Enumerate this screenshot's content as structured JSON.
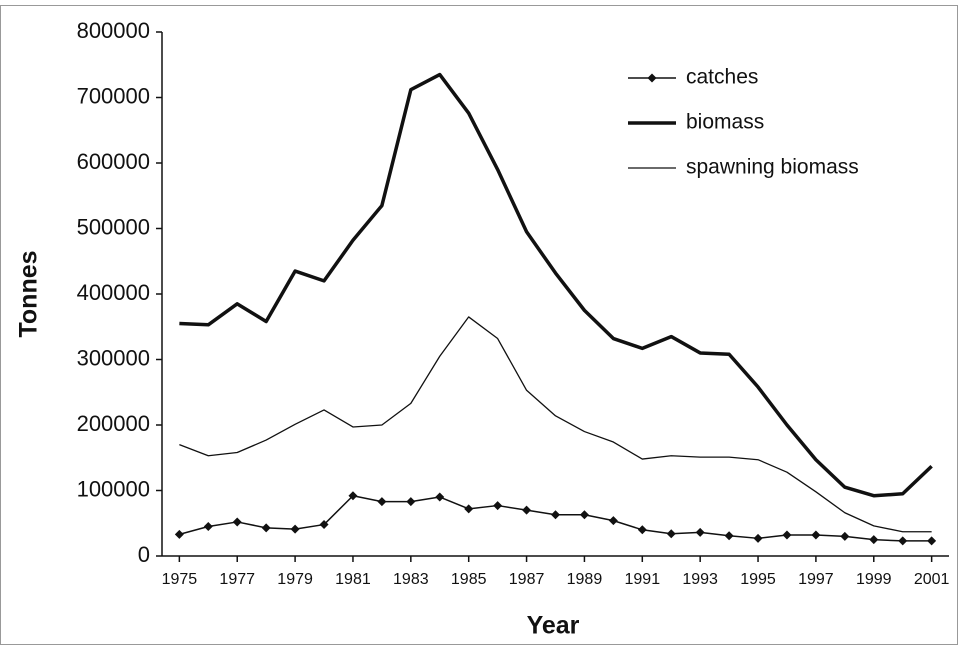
{
  "chart_data": {
    "type": "line",
    "x": [
      1975,
      1976,
      1977,
      1978,
      1979,
      1980,
      1981,
      1982,
      1983,
      1984,
      1985,
      1986,
      1987,
      1988,
      1989,
      1990,
      1991,
      1992,
      1993,
      1994,
      1995,
      1996,
      1997,
      1998,
      1999,
      2000,
      2001
    ],
    "series": [
      {
        "name": "catches",
        "color": "#111111",
        "width": 1.5,
        "marker": "diamond",
        "values": [
          33000,
          45000,
          52000,
          43000,
          41000,
          48000,
          92000,
          83000,
          83000,
          90000,
          72000,
          77000,
          70000,
          63000,
          63000,
          54000,
          40000,
          34000,
          36000,
          31000,
          27000,
          32000,
          32000,
          30000,
          25000,
          23000,
          23000
        ]
      },
      {
        "name": "biomass",
        "color": "#111111",
        "width": 3.5,
        "values": [
          355000,
          353000,
          385000,
          358000,
          435000,
          420000,
          482000,
          535000,
          712000,
          735000,
          676000,
          590000,
          495000,
          432000,
          375000,
          332000,
          317000,
          335000,
          310000,
          308000,
          258000,
          200000,
          147000,
          105000,
          92000,
          95000,
          137000
        ]
      },
      {
        "name": "spawning biomass",
        "color": "#111111",
        "width": 1.3,
        "values": [
          170000,
          153000,
          158000,
          177000,
          201000,
          223000,
          197000,
          200000,
          233000,
          305000,
          365000,
          332000,
          253000,
          214000,
          190000,
          174000,
          148000,
          153000,
          151000,
          151000,
          147000,
          128000,
          98000,
          66000,
          46000,
          37000,
          37000
        ]
      }
    ],
    "xlabel": "Year",
    "ylabel": "Tonnes",
    "xlim": [
      1974.4,
      2001.6
    ],
    "xticks": [
      1975,
      1977,
      1979,
      1981,
      1983,
      1985,
      1987,
      1989,
      1991,
      1993,
      1995,
      1997,
      1999,
      2001
    ],
    "ylim": [
      0,
      800000
    ],
    "yticks": [
      0,
      100000,
      200000,
      300000,
      400000,
      500000,
      600000,
      700000,
      800000
    ],
    "grid": false,
    "legend": "upper right"
  }
}
